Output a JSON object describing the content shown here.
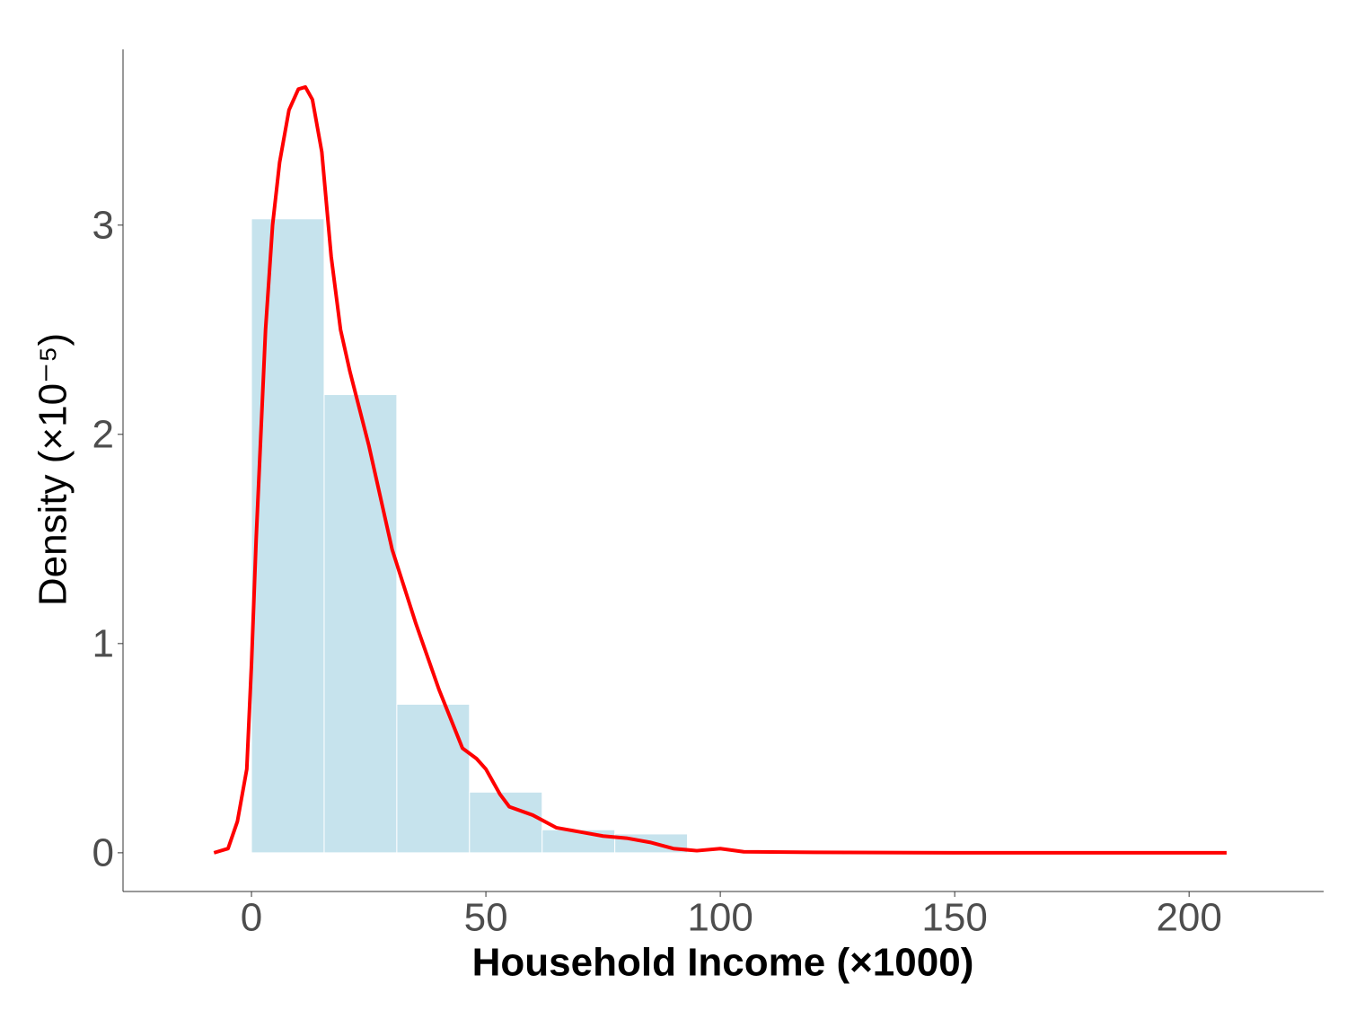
{
  "chart_data": {
    "type": "histogram",
    "x_label": "Household Income (×1000)",
    "y_label": "Density (×10⁻⁵)",
    "bins": [
      0,
      15.5,
      31,
      46.5,
      62,
      77.5,
      93
    ],
    "values": [
      3.03,
      2.19,
      0.71,
      0.29,
      0.11,
      0.09
    ],
    "color": "#c6e3ed",
    "density": {
      "color": "#ff0000",
      "x": [
        -8,
        -5,
        -3,
        -1,
        0,
        1,
        2,
        3,
        4.5,
        6,
        8,
        10,
        11.5,
        13,
        15,
        17,
        19,
        21,
        25,
        30,
        35,
        40,
        45,
        48,
        50,
        53,
        55,
        60,
        65,
        70,
        75,
        80,
        85,
        90,
        95,
        100,
        105,
        120,
        150,
        180,
        208
      ],
      "values": [
        0,
        0.02,
        0.15,
        0.4,
        0.9,
        1.5,
        2.0,
        2.5,
        3.0,
        3.3,
        3.55,
        3.65,
        3.66,
        3.6,
        3.35,
        2.85,
        2.5,
        2.3,
        1.95,
        1.45,
        1.1,
        0.78,
        0.5,
        0.45,
        0.4,
        0.28,
        0.22,
        0.18,
        0.12,
        0.1,
        0.08,
        0.07,
        0.05,
        0.02,
        0.01,
        0.02,
        0.005,
        0.002,
        0,
        0,
        0
      ]
    },
    "xlim": [
      -27.4,
      228.7
    ],
    "xticks": [
      0,
      50,
      100,
      150,
      200
    ],
    "ylim": [
      -0.185,
      3.84
    ],
    "yticks": [
      0,
      1,
      2,
      3
    ],
    "grid": false
  }
}
